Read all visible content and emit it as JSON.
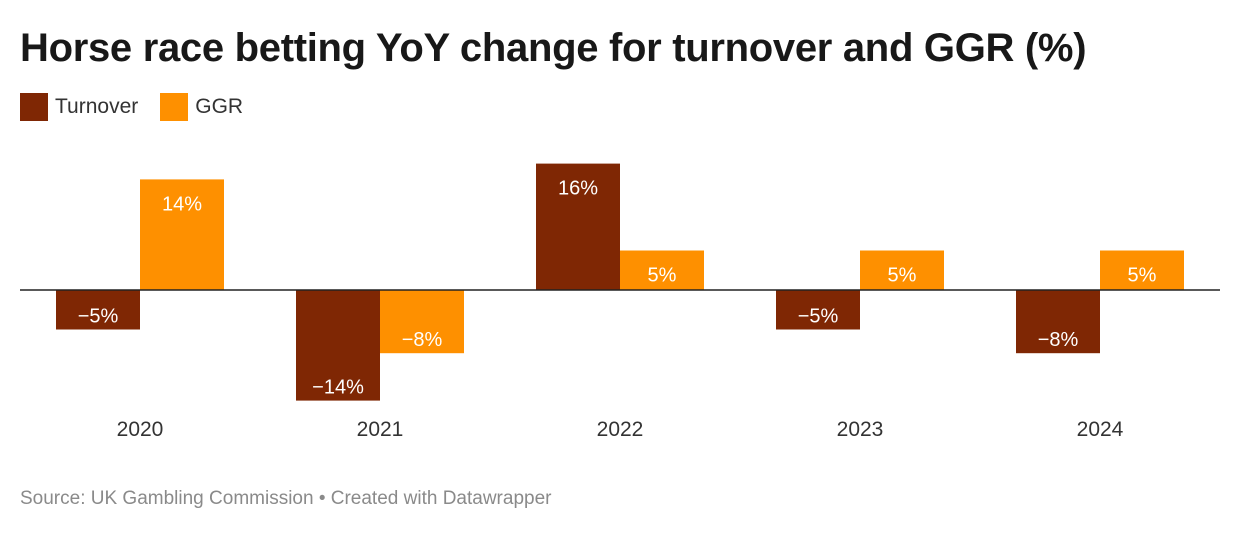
{
  "title": "Horse race betting YoY change for turnover and GGR (%)",
  "source": "Source: UK Gambling Commission • Created with Datawrapper",
  "chart_data": {
    "type": "bar",
    "title": "Horse race betting YoY change for turnover and GGR (%)",
    "categories": [
      "2020",
      "2021",
      "2022",
      "2023",
      "2024"
    ],
    "series": [
      {
        "name": "Turnover",
        "color": "#7f2704",
        "values": [
          -5,
          -14,
          16,
          -5,
          -8
        ],
        "labels": [
          "−5%",
          "−14%",
          "16%",
          "−5%",
          "−8%"
        ]
      },
      {
        "name": "GGR",
        "color": "#fe9000",
        "values": [
          14,
          -8,
          5,
          5,
          5
        ],
        "labels": [
          "14%",
          "−8%",
          "5%",
          "5%",
          "5%"
        ]
      }
    ],
    "ylim": [
      -16,
      16
    ],
    "grid": false,
    "legend": "top-left",
    "xlabel": "",
    "ylabel": ""
  }
}
